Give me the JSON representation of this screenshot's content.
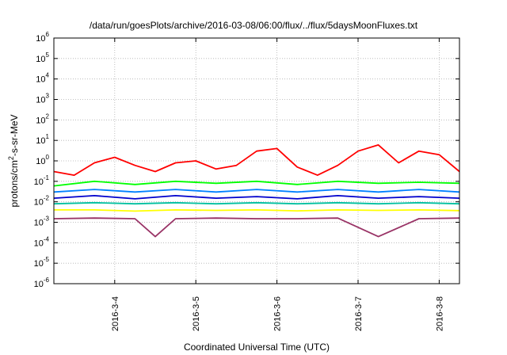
{
  "chart_data": {
    "type": "line",
    "title": "/data/run/goesPlots/archive/2016-03-08/06:00/flux/../flux/5daysMoonFluxes.txt",
    "xlabel": "Coordinated Universal Time (UTC)",
    "ylabel": {
      "prefix": "protons/cm",
      "superscript": "2",
      "suffix": "-s-sr-MeV"
    },
    "yscale": "log",
    "ylim": [
      1e-06,
      1000000.0
    ],
    "y_ticks": [
      {
        "base": "10",
        "exp": "-6"
      },
      {
        "base": "10",
        "exp": "-5"
      },
      {
        "base": "10",
        "exp": "-4"
      },
      {
        "base": "10",
        "exp": "-3"
      },
      {
        "base": "10",
        "exp": "-2"
      },
      {
        "base": "10",
        "exp": "-1"
      },
      {
        "base": "10",
        "exp": "0"
      },
      {
        "base": "10",
        "exp": "1"
      },
      {
        "base": "10",
        "exp": "2"
      },
      {
        "base": "10",
        "exp": "3"
      },
      {
        "base": "10",
        "exp": "4"
      },
      {
        "base": "10",
        "exp": "5"
      },
      {
        "base": "10",
        "exp": "6"
      }
    ],
    "xlim": [
      "2016-03-03 06:00",
      "2016-03-08 06:00"
    ],
    "x_ticks": [
      "2016-3-4",
      "2016-3-5",
      "2016-3-6",
      "2016-3-7",
      "2016-3-8"
    ],
    "grid": true,
    "legend": "none",
    "series": [
      {
        "color": "#ff0000",
        "x": [
          "2016-03-03 06:00",
          "2016-03-03 12:00",
          "2016-03-03 18:00",
          "2016-03-04 00:00",
          "2016-03-04 06:00",
          "2016-03-04 12:00",
          "2016-03-04 18:00",
          "2016-03-05 00:00",
          "2016-03-05 06:00",
          "2016-03-05 12:00",
          "2016-03-05 18:00",
          "2016-03-06 00:00",
          "2016-03-06 06:00",
          "2016-03-06 12:00",
          "2016-03-06 18:00",
          "2016-03-07 00:00",
          "2016-03-07 06:00",
          "2016-03-07 12:00",
          "2016-03-07 18:00",
          "2016-03-08 00:00",
          "2016-03-08 06:00"
        ],
        "values": [
          0.3,
          0.2,
          0.8,
          1.5,
          0.6,
          0.3,
          0.8,
          1.0,
          0.4,
          0.6,
          3.0,
          4.0,
          0.5,
          0.2,
          0.6,
          3.0,
          6.0,
          0.8,
          3.0,
          2.0,
          0.3
        ]
      },
      {
        "color": "#00ff00",
        "x": [
          "2016-03-03 06:00",
          "2016-03-03 18:00",
          "2016-03-04 06:00",
          "2016-03-04 18:00",
          "2016-03-05 06:00",
          "2016-03-05 18:00",
          "2016-03-06 06:00",
          "2016-03-06 18:00",
          "2016-03-07 06:00",
          "2016-03-07 18:00",
          "2016-03-08 06:00"
        ],
        "values": [
          0.06,
          0.1,
          0.07,
          0.1,
          0.08,
          0.1,
          0.07,
          0.1,
          0.08,
          0.09,
          0.08
        ]
      },
      {
        "color": "#0080ff",
        "x": [
          "2016-03-03 06:00",
          "2016-03-03 18:00",
          "2016-03-04 06:00",
          "2016-03-04 18:00",
          "2016-03-05 06:00",
          "2016-03-05 18:00",
          "2016-03-06 06:00",
          "2016-03-06 18:00",
          "2016-03-07 06:00",
          "2016-03-07 18:00",
          "2016-03-08 06:00"
        ],
        "values": [
          0.03,
          0.04,
          0.03,
          0.04,
          0.03,
          0.04,
          0.03,
          0.04,
          0.03,
          0.04,
          0.03
        ]
      },
      {
        "color": "#0000cc",
        "x": [
          "2016-03-03 06:00",
          "2016-03-03 18:00",
          "2016-03-04 06:00",
          "2016-03-04 18:00",
          "2016-03-05 06:00",
          "2016-03-05 18:00",
          "2016-03-06 06:00",
          "2016-03-06 18:00",
          "2016-03-07 06:00",
          "2016-03-07 18:00",
          "2016-03-08 06:00"
        ],
        "values": [
          0.015,
          0.02,
          0.014,
          0.02,
          0.015,
          0.018,
          0.014,
          0.02,
          0.015,
          0.018,
          0.015
        ]
      },
      {
        "color": "#00c0a0",
        "x": [
          "2016-03-03 06:00",
          "2016-03-03 18:00",
          "2016-03-04 06:00",
          "2016-03-04 18:00",
          "2016-03-05 06:00",
          "2016-03-05 18:00",
          "2016-03-06 06:00",
          "2016-03-06 18:00",
          "2016-03-07 06:00",
          "2016-03-07 18:00",
          "2016-03-08 06:00"
        ],
        "values": [
          0.008,
          0.009,
          0.008,
          0.009,
          0.008,
          0.009,
          0.008,
          0.009,
          0.008,
          0.009,
          0.008
        ]
      },
      {
        "color": "#ffff00",
        "x": [
          "2016-03-03 06:00",
          "2016-03-03 18:00",
          "2016-03-04 06:00",
          "2016-03-04 18:00",
          "2016-03-05 06:00",
          "2016-03-05 18:00",
          "2016-03-06 06:00",
          "2016-03-06 18:00",
          "2016-03-07 06:00",
          "2016-03-07 18:00",
          "2016-03-08 06:00"
        ],
        "values": [
          0.004,
          0.004,
          0.0035,
          0.004,
          0.0038,
          0.004,
          0.0036,
          0.004,
          0.0038,
          0.004,
          0.0037
        ]
      },
      {
        "color": "#993366",
        "x": [
          "2016-03-03 06:00",
          "2016-03-03 18:00",
          "2016-03-04 06:00",
          "2016-03-04 12:00",
          "2016-03-04 18:00",
          "2016-03-05 06:00",
          "2016-03-05 18:00",
          "2016-03-06 06:00",
          "2016-03-06 18:00",
          "2016-03-07 06:00",
          "2016-03-07 18:00",
          "2016-03-08 06:00"
        ],
        "values": [
          0.0015,
          0.0016,
          0.0015,
          0.0002,
          0.0015,
          0.0016,
          0.0015,
          0.0015,
          0.0016,
          0.0002,
          0.0015,
          0.0016
        ]
      }
    ]
  }
}
